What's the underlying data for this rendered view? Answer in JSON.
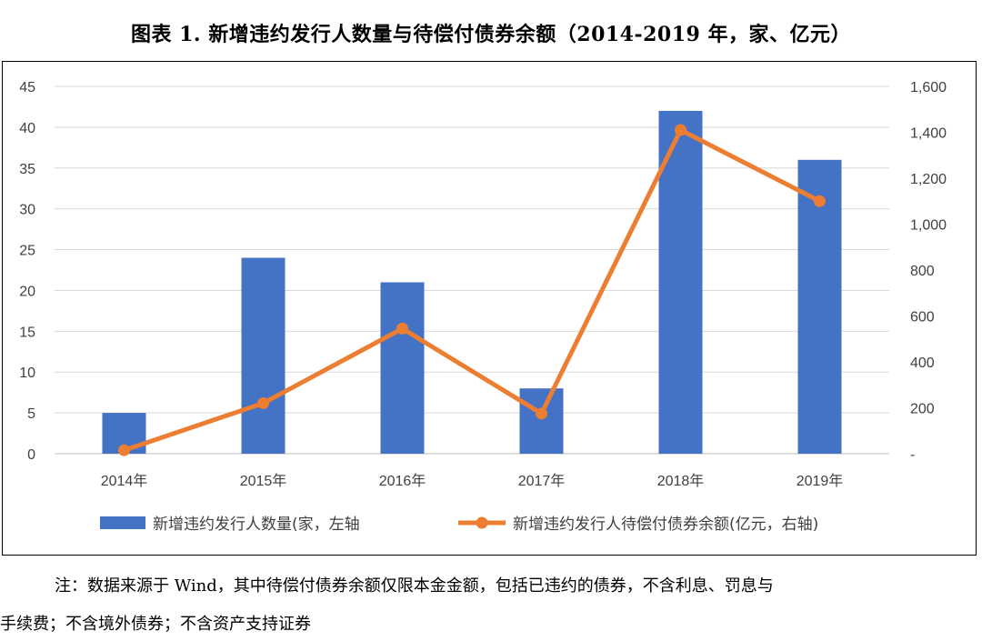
{
  "title": "图表 1. 新增违约发行人数量与待偿付债券余额（2014-2019 年，家、亿元）",
  "note": {
    "line1": "注：数据来源于 Wind，其中待偿付债券余额仅限本金金额，包括已违约的债券，不含利息、罚息与",
    "line2": "手续费；不含境外债券；不含资产支持证券"
  },
  "chart_data": {
    "type": "bar+line",
    "categories": [
      "2014年",
      "2015年",
      "2016年",
      "2017年",
      "2018年",
      "2019年"
    ],
    "series": [
      {
        "name": "新增违约发行人数量(家，左轴",
        "type": "bar",
        "axis": "left",
        "color": "#4472C4",
        "values": [
          5,
          24,
          21,
          8,
          42,
          36
        ]
      },
      {
        "name": "新增违约发行人待偿付债券余额(亿元，右轴)",
        "type": "line",
        "axis": "right",
        "color": "#ED7D31",
        "values": [
          15,
          220,
          545,
          175,
          1410,
          1100
        ]
      }
    ],
    "y_left": {
      "min": 0,
      "max": 45,
      "step": 5,
      "ticks": [
        "0",
        "5",
        "10",
        "15",
        "20",
        "25",
        "30",
        "35",
        "40",
        "45"
      ]
    },
    "y_right": {
      "min": 0,
      "max": 1600,
      "step": 200,
      "ticks": [
        "-",
        "200",
        "400",
        "600",
        "800",
        "1,000",
        "1,200",
        "1,400",
        "1,600"
      ]
    },
    "grid": true,
    "legend": "bottom"
  }
}
